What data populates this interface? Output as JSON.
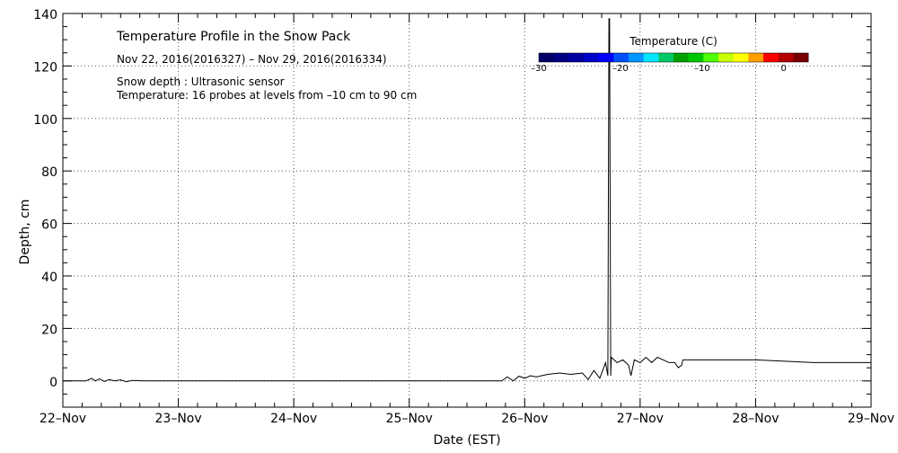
{
  "chart_data": {
    "type": "line",
    "title": "Temperature Profile in the Snow Pack",
    "subtitle": "Nov 22, 2016(2016327) – Nov 29, 2016(2016334)",
    "notes": [
      "Snow depth : Ultrasonic sensor",
      "Temperature: 16 probes at levels from –10 cm to 90 cm"
    ],
    "xlabel": "Date (EST)",
    "ylabel": "Depth, cm",
    "x_tick_labels": [
      "22–Nov",
      "23–Nov",
      "24–Nov",
      "25–Nov",
      "26–Nov",
      "27–Nov",
      "28–Nov",
      "29–Nov"
    ],
    "xlim_days": [
      0,
      7
    ],
    "ylim": [
      -10,
      140
    ],
    "y_ticks": [
      0,
      20,
      40,
      60,
      80,
      100,
      120,
      140
    ],
    "grid": true,
    "colorbar": {
      "label": "Temperature (C)",
      "range": [
        -30,
        3
      ],
      "ticks": [
        "–30",
        "–20",
        "–10",
        "0"
      ],
      "tick_values": [
        -30,
        -20,
        -10,
        0
      ],
      "colors": [
        "#000066",
        "#000080",
        "#0000a0",
        "#0000c8",
        "#0000ff",
        "#0050ff",
        "#0096ff",
        "#00e6ff",
        "#00c864",
        "#00a000",
        "#00c800",
        "#50ff00",
        "#c8ff00",
        "#ffff00",
        "#ffa000",
        "#ff0000",
        "#b40000",
        "#780000"
      ]
    },
    "series": [
      {
        "x": [
          0.0,
          0.2,
          0.25,
          0.28,
          0.32,
          0.36,
          0.4,
          0.45,
          0.5,
          0.55,
          0.6,
          0.7,
          1.0,
          2.0,
          3.0,
          3.8,
          3.85,
          3.9,
          3.95,
          4.0,
          4.05,
          4.1,
          4.2,
          4.3,
          4.4,
          4.5,
          4.55,
          4.6,
          4.65,
          4.7,
          4.72,
          4.73,
          4.735,
          4.74,
          4.745,
          4.75,
          4.8,
          4.85,
          4.9,
          4.92,
          4.95,
          5.0,
          5.05,
          5.1,
          5.15,
          5.2,
          5.25,
          5.3,
          5.33,
          5.36,
          5.37,
          5.5,
          6.0,
          6.5,
          7.0
        ],
        "y": [
          0,
          0,
          1,
          0,
          0.8,
          -0.2,
          0.5,
          0,
          0.4,
          -0.3,
          0.2,
          0,
          0,
          0,
          0,
          0,
          1.5,
          0,
          1.8,
          1,
          2,
          1.5,
          2.5,
          3,
          2.5,
          3,
          0.5,
          4,
          1,
          7,
          2,
          138,
          138,
          75,
          2,
          9,
          7,
          8,
          6,
          2,
          8,
          7,
          9,
          7,
          9,
          8,
          7,
          7,
          5,
          6,
          8,
          8,
          8,
          7,
          7
        ]
      }
    ]
  }
}
